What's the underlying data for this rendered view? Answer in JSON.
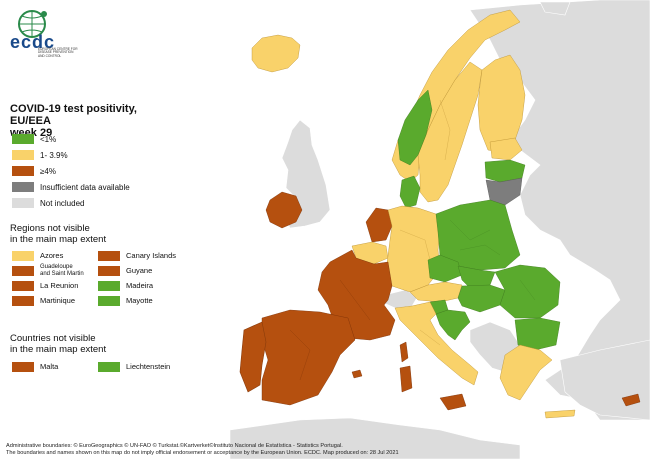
{
  "logo": {
    "wordmark": "ecdc",
    "subtitle_line1": "EUROPEAN CENTRE FOR",
    "subtitle_line2": "DISEASE PREVENTION",
    "subtitle_line3": "AND CONTROL"
  },
  "title": {
    "line1": "COVID-19 test positivity, EU/EEA",
    "line2": "week 29"
  },
  "legend": [
    {
      "label": "<1%",
      "color": "#5aaa2d"
    },
    {
      "label": "1- 3.9%",
      "color": "#f9d26a"
    },
    {
      "label": "≥4%",
      "color": "#b5500f"
    },
    {
      "label": "Insufficient data available",
      "color": "#7d7d7d"
    },
    {
      "label": "Not included",
      "color": "#dcdcdc"
    }
  ],
  "regions_section": {
    "title_line1": "Regions not visible",
    "title_line2": "in the main map extent",
    "items": [
      {
        "label": "Azores",
        "color": "#f9d26a"
      },
      {
        "label": "Canary Islands",
        "color": "#b5500f"
      },
      {
        "label": "Guadeloupe\nand Saint Martin",
        "color": "#b5500f"
      },
      {
        "label": "Guyane",
        "color": "#b5500f"
      },
      {
        "label": "La Reunion",
        "color": "#b5500f"
      },
      {
        "label": "Madeira",
        "color": "#5aaa2d"
      },
      {
        "label": "Martinique",
        "color": "#b5500f"
      },
      {
        "label": "Mayotte",
        "color": "#5aaa2d"
      }
    ]
  },
  "countries_section": {
    "title_line1": "Countries not visible",
    "title_line2": "in the main map extent",
    "items": [
      {
        "label": "Malta",
        "color": "#b5500f"
      },
      {
        "label": "Liechtenstein",
        "color": "#5aaa2d"
      }
    ]
  },
  "footer": {
    "line1": "Administrative boundaries: © EuroGeographics © UN-FAO © Turkstat.©Kartverket©Instituto Nacional de Estatística - Statistics Portugal.",
    "line2": "The boundaries and names shown on this map do not imply official endorsement or acceptance by the European Union. ECDC. Map produced on: 28 Jul 2021"
  },
  "map_colors": {
    "sea": "#ffffff",
    "non_included": "#dcdcdc",
    "green": "#5aaa2d",
    "yellow": "#f9d26a",
    "brown": "#b5500f",
    "grey": "#7d7d7d"
  },
  "countries": [
    {
      "name": "Iceland",
      "category": "1- 3.9%"
    },
    {
      "name": "Ireland",
      "category": "≥4%"
    },
    {
      "name": "Netherlands",
      "category": "≥4%"
    },
    {
      "name": "Spain",
      "category": "≥4%"
    },
    {
      "name": "Portugal",
      "category": "≥4%"
    },
    {
      "name": "Cyprus",
      "category": "≥4%"
    },
    {
      "name": "Norway",
      "category": "1- 3.9%"
    },
    {
      "name": "Sweden",
      "category": "1- 3.9%"
    },
    {
      "name": "Finland",
      "category": "1- 3.9%"
    },
    {
      "name": "Denmark",
      "category": "<1%"
    },
    {
      "name": "Estonia",
      "category": "1- 3.9%"
    },
    {
      "name": "Latvia",
      "category": "<1%"
    },
    {
      "name": "Lithuania",
      "category": "Insufficient data available"
    },
    {
      "name": "Poland",
      "category": "<1%"
    },
    {
      "name": "Germany",
      "category": "1- 3.9%"
    },
    {
      "name": "Belgium",
      "category": "1- 3.9%"
    },
    {
      "name": "Luxembourg",
      "category": "1- 3.9%"
    },
    {
      "name": "France",
      "category": "≥4%"
    },
    {
      "name": "Czechia",
      "category": "<1%"
    },
    {
      "name": "Slovakia",
      "category": "<1%"
    },
    {
      "name": "Austria",
      "category": "1- 3.9%"
    },
    {
      "name": "Hungary",
      "category": "<1%"
    },
    {
      "name": "Romania",
      "category": "<1%"
    },
    {
      "name": "Bulgaria",
      "category": "<1%"
    },
    {
      "name": "Slovenia",
      "category": "<1%"
    },
    {
      "name": "Croatia",
      "category": "<1%"
    },
    {
      "name": "Italy",
      "category": "1- 3.9%"
    },
    {
      "name": "Greece",
      "category": "1- 3.9%"
    }
  ]
}
